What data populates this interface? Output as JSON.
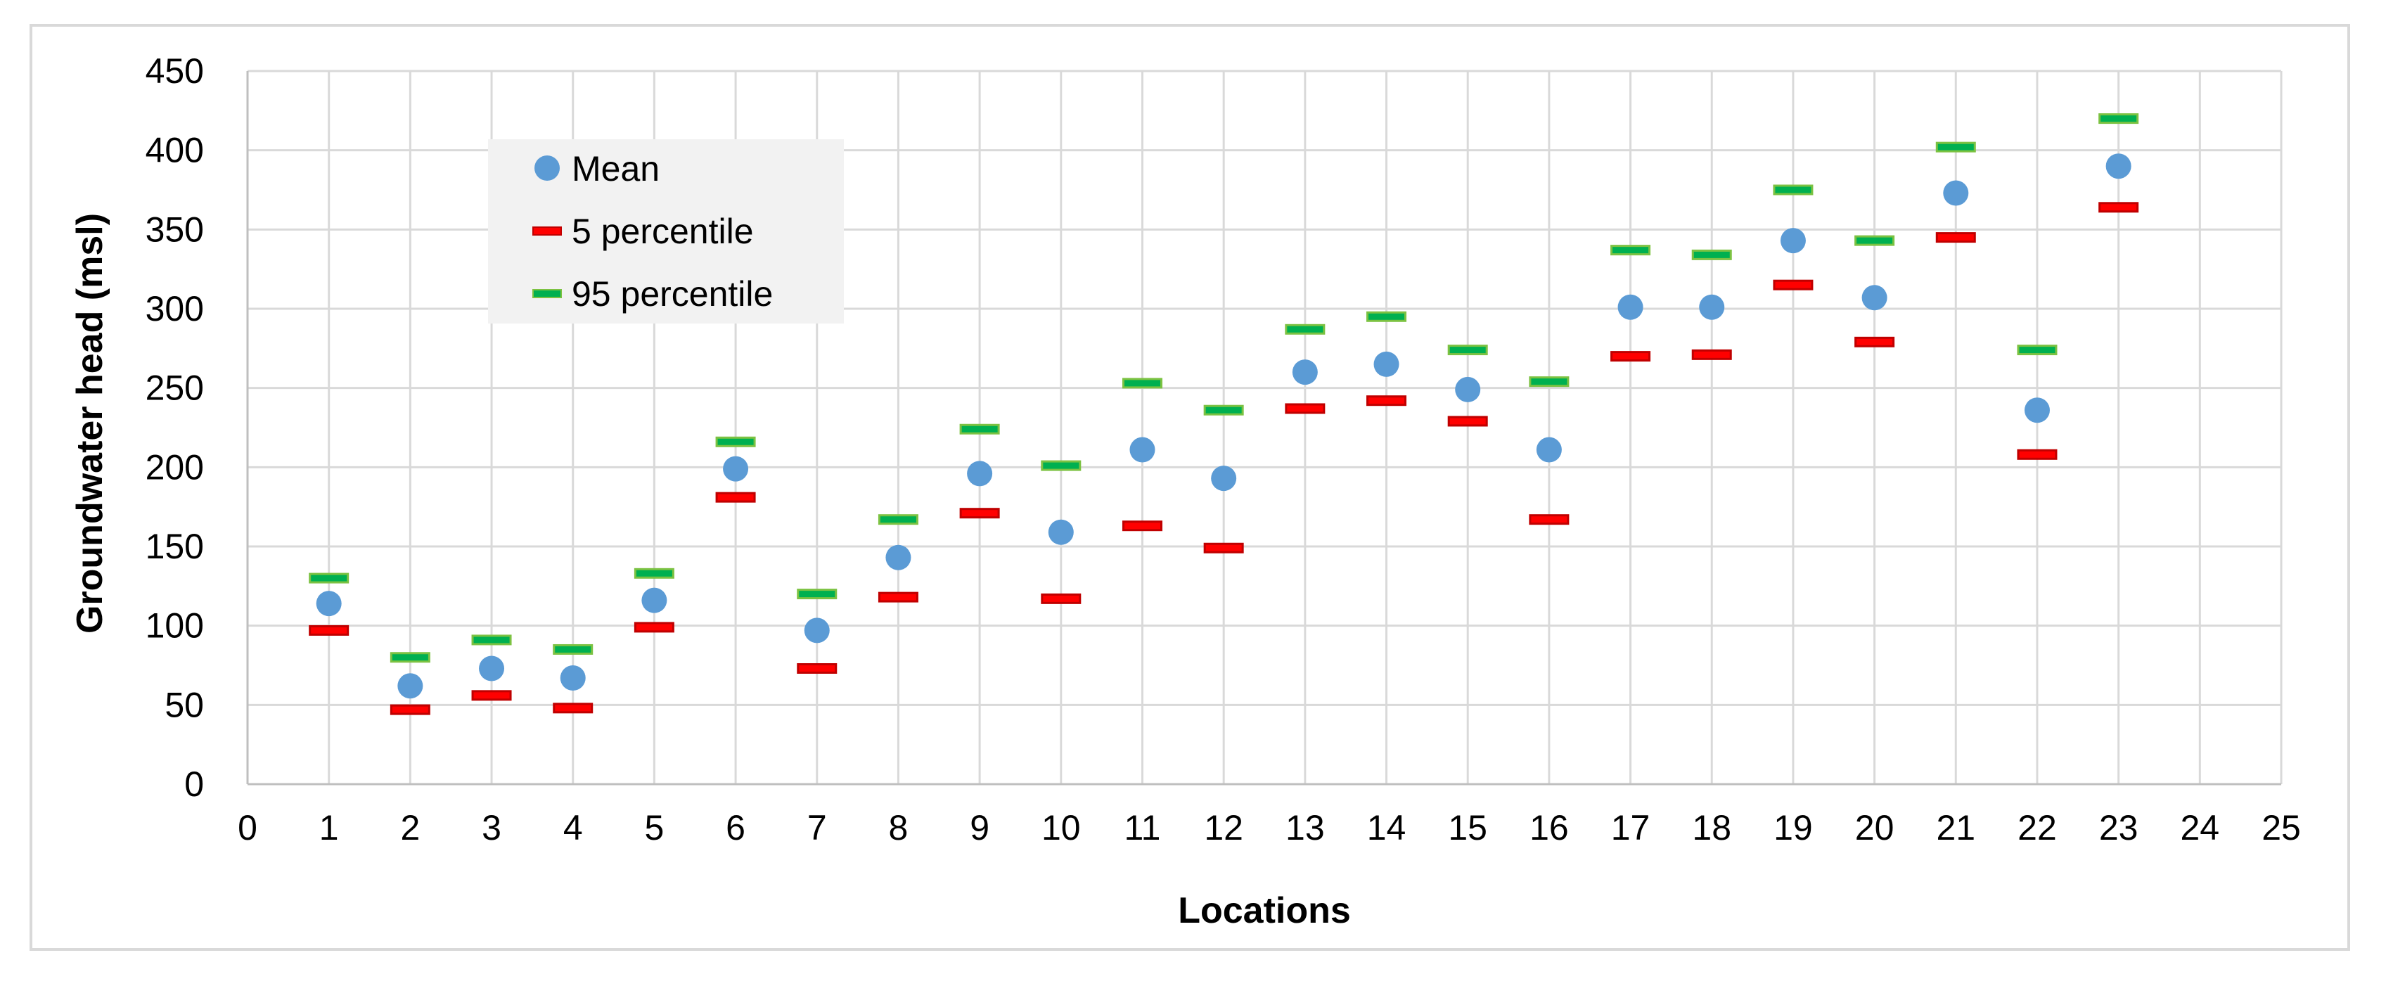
{
  "chart_data": {
    "type": "scatter",
    "title": "",
    "xlabel": "Locations",
    "ylabel": "Groundwater head (msl)",
    "xlim": [
      0,
      25
    ],
    "ylim": [
      0,
      450
    ],
    "x_ticks": [
      "0",
      "1",
      "2",
      "3",
      "4",
      "5",
      "6",
      "7",
      "8",
      "9",
      "10",
      "11",
      "12",
      "13",
      "14",
      "15",
      "16",
      "17",
      "18",
      "19",
      "20",
      "21",
      "22",
      "23",
      "24",
      "25"
    ],
    "y_ticks": [
      "0",
      "50",
      "100",
      "150",
      "200",
      "250",
      "300",
      "350",
      "400",
      "450"
    ],
    "grid": true,
    "legend_position": "top-left",
    "x": [
      1,
      2,
      3,
      4,
      5,
      6,
      7,
      8,
      9,
      10,
      11,
      12,
      13,
      14,
      15,
      16,
      17,
      18,
      19,
      20,
      21,
      22,
      23
    ],
    "series": [
      {
        "name": "Mean",
        "marker": "circle",
        "color": "#5b9bd5",
        "values": [
          114,
          62,
          73,
          67,
          116,
          199,
          97,
          143,
          196,
          159,
          211,
          193,
          260,
          265,
          249,
          211,
          301,
          301,
          343,
          307,
          373,
          236,
          390
        ]
      },
      {
        "name": "5 percentile",
        "marker": "dash",
        "color": "#ff0000",
        "values": [
          97,
          47,
          56,
          48,
          99,
          181,
          73,
          118,
          171,
          117,
          163,
          149,
          237,
          242,
          229,
          167,
          270,
          271,
          315,
          279,
          345,
          208,
          364
        ]
      },
      {
        "name": "95 percentile",
        "marker": "dash",
        "color": "#00b050",
        "values": [
          130,
          80,
          91,
          85,
          133,
          216,
          120,
          167,
          224,
          201,
          253,
          236,
          287,
          295,
          274,
          254,
          337,
          334,
          375,
          343,
          402,
          274,
          420
        ]
      }
    ]
  }
}
